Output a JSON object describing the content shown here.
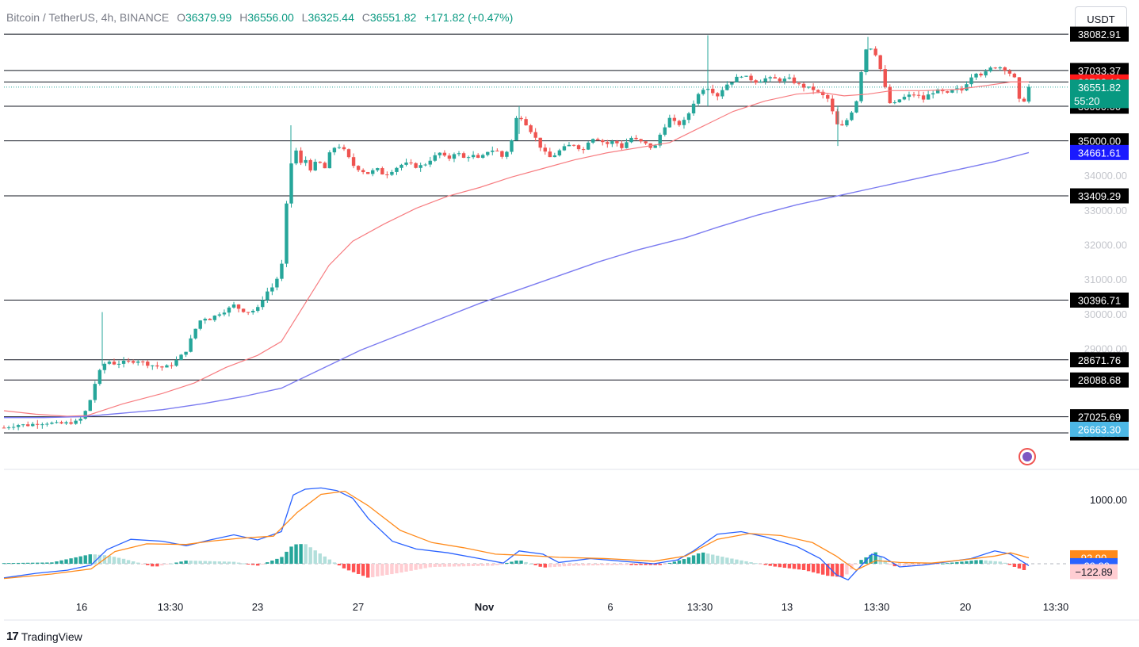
{
  "header": {
    "symbol": "Bitcoin / TetherUS, 4h, BINANCE",
    "o_label": "O",
    "o_value": "36379.99",
    "h_label": "H",
    "h_value": "36556.00",
    "l_label": "L",
    "l_value": "36325.44",
    "c_label": "C",
    "c_value": "36551.82",
    "change": "+171.82 (+0.47%)"
  },
  "currency_button": "USDT",
  "footer": {
    "logo": "17",
    "brand": "TradingView"
  },
  "colors": {
    "up": "#26a69a",
    "down": "#ef5350",
    "ema_short": "#f77c80",
    "ema_long": "#7b7bf0",
    "macd": "#2962ff",
    "signal": "#ff8a1a",
    "hline": "#131722"
  },
  "chart_data": [
    {
      "type": "candlestick",
      "timeframe": "4h",
      "x_ticks": [
        "16",
        "13:30",
        "23",
        "27",
        "Nov",
        "6",
        "13:30",
        "13",
        "13:30",
        "20",
        "13:30"
      ],
      "y_ticks": [
        "34000.00",
        "33000.00",
        "32000.00",
        "31000.00",
        "30000.00",
        "29000.00"
      ],
      "ylim": [
        26100,
        38550
      ],
      "horizontal_levels": [
        "38082.91",
        "37033.37",
        "36702.10",
        "36000.00",
        "35000.00",
        "33409.29",
        "30396.71",
        "28671.76",
        "28088.68",
        "27025.69",
        "26558.10"
      ],
      "price_labels": [
        {
          "text": "36702.10",
          "color": "#ff1a1a"
        },
        {
          "text": "36551.82",
          "sub": "55:20",
          "color": "#089981"
        },
        {
          "text": "34661.61",
          "color": "#1a1aff"
        },
        {
          "text": "26663.30",
          "color": "#4db8e6"
        }
      ],
      "close_path": [
        [
          0,
          26710
        ],
        [
          10,
          26760
        ],
        [
          20,
          26800
        ],
        [
          30,
          26780
        ],
        [
          40,
          26830
        ],
        [
          55,
          26850
        ],
        [
          70,
          26820
        ],
        [
          85,
          26860
        ],
        [
          95,
          26890
        ],
        [
          100,
          27100
        ],
        [
          105,
          27250
        ],
        [
          110,
          27600
        ],
        [
          115,
          28000
        ],
        [
          120,
          28300
        ],
        [
          125,
          28500
        ],
        [
          130,
          28650
        ],
        [
          140,
          28550
        ],
        [
          150,
          28600
        ],
        [
          160,
          28620
        ],
        [
          170,
          28650
        ],
        [
          180,
          28550
        ],
        [
          190,
          28500
        ],
        [
          200,
          28450
        ],
        [
          210,
          28500
        ],
        [
          220,
          28700
        ],
        [
          230,
          28950
        ],
        [
          240,
          29500
        ],
        [
          250,
          29900
        ],
        [
          260,
          29850
        ],
        [
          270,
          30000
        ],
        [
          280,
          30100
        ],
        [
          290,
          30250
        ],
        [
          300,
          30100
        ],
        [
          310,
          30050
        ],
        [
          320,
          30150
        ],
        [
          330,
          30600
        ],
        [
          340,
          30800
        ],
        [
          350,
          31300
        ],
        [
          355,
          32700
        ],
        [
          360,
          34200
        ],
        [
          365,
          34500
        ],
        [
          370,
          34800
        ],
        [
          375,
          34300
        ],
        [
          380,
          34500
        ],
        [
          385,
          34100
        ],
        [
          390,
          34350
        ],
        [
          400,
          34350
        ],
        [
          405,
          34200
        ],
        [
          410,
          34600
        ],
        [
          420,
          34900
        ],
        [
          430,
          34700
        ],
        [
          440,
          34300
        ],
        [
          450,
          34150
        ],
        [
          460,
          34050
        ],
        [
          470,
          34200
        ],
        [
          480,
          34000
        ],
        [
          490,
          34150
        ],
        [
          500,
          34300
        ],
        [
          510,
          34350
        ],
        [
          520,
          34250
        ],
        [
          530,
          34300
        ],
        [
          540,
          34500
        ],
        [
          550,
          34650
        ],
        [
          560,
          34450
        ],
        [
          570,
          34700
        ],
        [
          580,
          34500
        ],
        [
          590,
          34600
        ],
        [
          600,
          34450
        ],
        [
          610,
          34700
        ],
        [
          620,
          34750
        ],
        [
          630,
          34500
        ],
        [
          640,
          34950
        ],
        [
          645,
          35600
        ],
        [
          650,
          35750
        ],
        [
          660,
          35450
        ],
        [
          670,
          35100
        ],
        [
          680,
          34700
        ],
        [
          690,
          34500
        ],
        [
          700,
          34700
        ],
        [
          710,
          34850
        ],
        [
          720,
          34900
        ],
        [
          730,
          34700
        ],
        [
          740,
          35100
        ],
        [
          750,
          35050
        ],
        [
          760,
          34900
        ],
        [
          770,
          35000
        ],
        [
          780,
          34800
        ],
        [
          790,
          35100
        ],
        [
          800,
          35000
        ],
        [
          810,
          34900
        ],
        [
          820,
          34750
        ],
        [
          830,
          35300
        ],
        [
          840,
          35650
        ],
        [
          850,
          35450
        ],
        [
          860,
          35600
        ],
        [
          870,
          36100
        ],
        [
          880,
          36500
        ],
        [
          890,
          36550
        ],
        [
          895,
          36400
        ],
        [
          900,
          36300
        ],
        [
          910,
          36600
        ],
        [
          920,
          36750
        ],
        [
          930,
          36900
        ],
        [
          940,
          36800
        ],
        [
          950,
          36700
        ],
        [
          960,
          36800
        ],
        [
          970,
          36800
        ],
        [
          980,
          36750
        ],
        [
          990,
          36800
        ],
        [
          1000,
          36650
        ],
        [
          1010,
          36550
        ],
        [
          1020,
          36500
        ],
        [
          1030,
          36350
        ],
        [
          1040,
          36200
        ],
        [
          1050,
          35500
        ],
        [
          1055,
          35350
        ],
        [
          1065,
          35650
        ],
        [
          1075,
          36100
        ],
        [
          1080,
          36800
        ],
        [
          1085,
          37500
        ],
        [
          1090,
          37800
        ],
        [
          1100,
          37500
        ],
        [
          1108,
          36900
        ],
        [
          1115,
          36200
        ],
        [
          1120,
          36000
        ],
        [
          1130,
          36200
        ],
        [
          1140,
          36300
        ],
        [
          1150,
          36350
        ],
        [
          1160,
          36200
        ],
        [
          1170,
          36400
        ],
        [
          1180,
          36450
        ],
        [
          1190,
          36350
        ],
        [
          1200,
          36500
        ],
        [
          1210,
          36450
        ],
        [
          1215,
          36700
        ],
        [
          1225,
          37000
        ],
        [
          1235,
          36900
        ],
        [
          1245,
          37100
        ],
        [
          1255,
          37150
        ],
        [
          1265,
          37050
        ],
        [
          1275,
          36800
        ],
        [
          1280,
          36200
        ],
        [
          1285,
          36050
        ],
        [
          1293,
          36551.82
        ]
      ],
      "ema_short": [
        [
          0,
          27200
        ],
        [
          40,
          27100
        ],
        [
          80,
          27040
        ],
        [
          105,
          27060
        ],
        [
          150,
          27400
        ],
        [
          200,
          27700
        ],
        [
          240,
          28000
        ],
        [
          280,
          28450
        ],
        [
          320,
          28800
        ],
        [
          350,
          29200
        ],
        [
          380,
          30300
        ],
        [
          410,
          31400
        ],
        [
          440,
          32100
        ],
        [
          480,
          32600
        ],
        [
          520,
          33050
        ],
        [
          560,
          33400
        ],
        [
          600,
          33650
        ],
        [
          640,
          33950
        ],
        [
          680,
          34200
        ],
        [
          720,
          34450
        ],
        [
          760,
          34650
        ],
        [
          800,
          34800
        ],
        [
          840,
          34950
        ],
        [
          880,
          35400
        ],
        [
          920,
          35850
        ],
        [
          960,
          36150
        ],
        [
          1000,
          36350
        ],
        [
          1030,
          36400
        ],
        [
          1060,
          36300
        ],
        [
          1090,
          36350
        ],
        [
          1120,
          36450
        ],
        [
          1160,
          36450
        ],
        [
          1200,
          36480
        ],
        [
          1240,
          36600
        ],
        [
          1270,
          36700
        ],
        [
          1293,
          36702.1
        ]
      ],
      "ema_long": [
        [
          0,
          27000
        ],
        [
          50,
          27000
        ],
        [
          100,
          27030
        ],
        [
          150,
          27130
        ],
        [
          200,
          27230
        ],
        [
          250,
          27400
        ],
        [
          300,
          27600
        ],
        [
          350,
          27850
        ],
        [
          400,
          28400
        ],
        [
          450,
          28950
        ],
        [
          500,
          29400
        ],
        [
          550,
          29850
        ],
        [
          600,
          30300
        ],
        [
          650,
          30700
        ],
        [
          700,
          31100
        ],
        [
          750,
          31500
        ],
        [
          800,
          31850
        ],
        [
          860,
          32200
        ],
        [
          900,
          32500
        ],
        [
          950,
          32850
        ],
        [
          1000,
          33150
        ],
        [
          1050,
          33400
        ],
        [
          1100,
          33650
        ],
        [
          1150,
          33900
        ],
        [
          1200,
          34150
        ],
        [
          1250,
          34400
        ],
        [
          1293,
          34661.61
        ]
      ]
    },
    {
      "type": "macd",
      "y_ticks": [
        "1000.00"
      ],
      "ylim": [
        -480,
        1350
      ],
      "value_labels": [
        {
          "text": "92.90",
          "color": "#ff8a1a"
        },
        {
          "text": "−29.99",
          "color": "#2962ff"
        },
        {
          "text": "−122.89",
          "color": "#ffcdd2"
        }
      ],
      "macd_line": [
        [
          0,
          -220
        ],
        [
          40,
          -150
        ],
        [
          80,
          -100
        ],
        [
          110,
          -20
        ],
        [
          130,
          220
        ],
        [
          160,
          380
        ],
        [
          200,
          350
        ],
        [
          230,
          280
        ],
        [
          260,
          370
        ],
        [
          290,
          450
        ],
        [
          320,
          370
        ],
        [
          350,
          500
        ],
        [
          365,
          1070
        ],
        [
          380,
          1160
        ],
        [
          400,
          1180
        ],
        [
          420,
          1140
        ],
        [
          440,
          1020
        ],
        [
          460,
          700
        ],
        [
          490,
          350
        ],
        [
          520,
          230
        ],
        [
          560,
          170
        ],
        [
          600,
          80
        ],
        [
          630,
          10
        ],
        [
          650,
          200
        ],
        [
          680,
          150
        ],
        [
          700,
          20
        ],
        [
          740,
          80
        ],
        [
          780,
          40
        ],
        [
          820,
          0
        ],
        [
          850,
          60
        ],
        [
          870,
          200
        ],
        [
          900,
          460
        ],
        [
          930,
          500
        ],
        [
          960,
          420
        ],
        [
          1000,
          270
        ],
        [
          1030,
          80
        ],
        [
          1050,
          -170
        ],
        [
          1065,
          -250
        ],
        [
          1080,
          -50
        ],
        [
          1095,
          150
        ],
        [
          1110,
          100
        ],
        [
          1130,
          -50
        ],
        [
          1160,
          -20
        ],
        [
          1190,
          30
        ],
        [
          1220,
          80
        ],
        [
          1250,
          200
        ],
        [
          1270,
          150
        ],
        [
          1293,
          -29.99
        ]
      ],
      "signal_line": [
        [
          0,
          -230
        ],
        [
          60,
          -160
        ],
        [
          110,
          -80
        ],
        [
          140,
          190
        ],
        [
          180,
          310
        ],
        [
          230,
          300
        ],
        [
          260,
          350
        ],
        [
          300,
          400
        ],
        [
          340,
          430
        ],
        [
          370,
          800
        ],
        [
          400,
          1080
        ],
        [
          430,
          1130
        ],
        [
          460,
          900
        ],
        [
          500,
          520
        ],
        [
          540,
          330
        ],
        [
          580,
          250
        ],
        [
          620,
          150
        ],
        [
          660,
          130
        ],
        [
          700,
          100
        ],
        [
          760,
          80
        ],
        [
          820,
          40
        ],
        [
          860,
          120
        ],
        [
          900,
          380
        ],
        [
          940,
          470
        ],
        [
          980,
          440
        ],
        [
          1020,
          330
        ],
        [
          1050,
          120
        ],
        [
          1075,
          -100
        ],
        [
          1100,
          50
        ],
        [
          1130,
          20
        ],
        [
          1170,
          10
        ],
        [
          1210,
          60
        ],
        [
          1250,
          120
        ],
        [
          1270,
          170
        ],
        [
          1293,
          92.9
        ]
      ],
      "histogram": [
        [
          0,
          10
        ],
        [
          60,
          20
        ],
        [
          110,
          150
        ],
        [
          130,
          130
        ],
        [
          150,
          80
        ],
        [
          190,
          -50
        ],
        [
          230,
          50
        ],
        [
          290,
          30
        ],
        [
          320,
          -30
        ],
        [
          350,
          100
        ],
        [
          365,
          300
        ],
        [
          380,
          310
        ],
        [
          400,
          150
        ],
        [
          430,
          -80
        ],
        [
          460,
          -220
        ],
        [
          500,
          -140
        ],
        [
          540,
          -50
        ],
        [
          580,
          -40
        ],
        [
          620,
          -30
        ],
        [
          650,
          60
        ],
        [
          680,
          -60
        ],
        [
          720,
          -30
        ],
        [
          780,
          -20
        ],
        [
          830,
          -20
        ],
        [
          860,
          80
        ],
        [
          880,
          180
        ],
        [
          910,
          100
        ],
        [
          940,
          30
        ],
        [
          970,
          -40
        ],
        [
          1010,
          -100
        ],
        [
          1040,
          -190
        ],
        [
          1060,
          -210
        ],
        [
          1080,
          50
        ],
        [
          1100,
          180
        ],
        [
          1120,
          -40
        ],
        [
          1150,
          -30
        ],
        [
          1190,
          10
        ],
        [
          1230,
          60
        ],
        [
          1260,
          30
        ],
        [
          1275,
          -50
        ],
        [
          1293,
          -122.89
        ]
      ]
    }
  ]
}
